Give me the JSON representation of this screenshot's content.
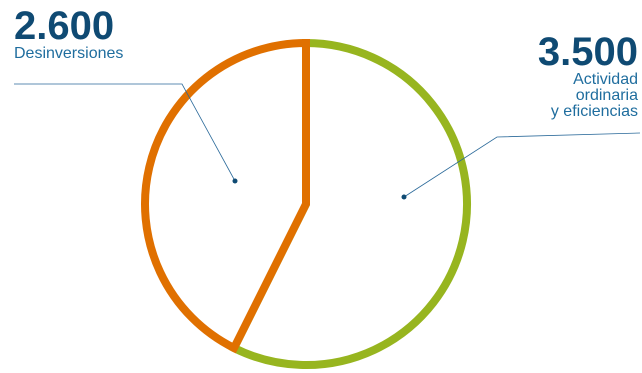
{
  "chart_data": {
    "type": "pie",
    "title": "",
    "slices": [
      {
        "value": 2600,
        "value_label": "2.600",
        "label_lines": [
          "Desinversiones"
        ],
        "color": "#e07000"
      },
      {
        "value": 3500,
        "value_label": "3.500",
        "label_lines": [
          "Actividad",
          "ordinaria",
          "y eficiencias"
        ],
        "color": "#97b51f"
      }
    ],
    "fill": "#ffffff",
    "text_color": "#0f4a73",
    "leader_color": "#2b6a9a"
  }
}
